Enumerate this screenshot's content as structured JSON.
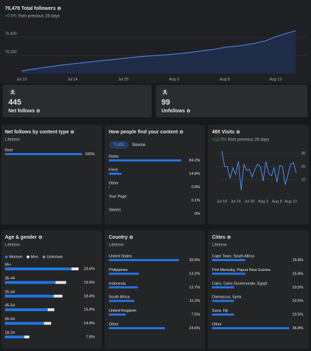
{
  "summary": [
    {
      "value": 445,
      "label": "Net follows"
    },
    {
      "value": 99,
      "label": "Unfollows"
    }
  ],
  "chart_data": [
    {
      "type": "area",
      "title": "70,478 Total followers",
      "change": "+0.6%",
      "subtitle": "from previous 28 days",
      "categories": [
        "Jul 19",
        null,
        null,
        null,
        null,
        "Jul 24",
        null,
        null,
        null,
        null,
        "Jul 29",
        null,
        null,
        null,
        null,
        "Aug 3",
        null,
        null,
        null,
        null,
        "Aug 8",
        null,
        null,
        null,
        null,
        "Aug 13",
        null,
        null
      ],
      "values": [
        70030,
        70048,
        70065,
        70080,
        70095,
        70108,
        70120,
        70132,
        70145,
        70155,
        70168,
        70180,
        70190,
        70198,
        70205,
        70215,
        70225,
        70240,
        70255,
        70268,
        70290,
        70300,
        70315,
        70335,
        70360,
        70405,
        70440,
        70472
      ],
      "ylim": [
        70000,
        70600
      ],
      "yticks": [
        {
          "value": 70200,
          "label": "70,200"
        },
        {
          "value": 70400,
          "label": "70,400"
        }
      ],
      "color": "#4a7fd4",
      "grid": true
    },
    {
      "type": "hbar",
      "title": "Net follows by content type",
      "subtitle": "Lifetime",
      "categories": [
        "Reel"
      ],
      "values": [
        100
      ],
      "value_labels": [
        "100%"
      ],
      "color": "#2374e1"
    },
    {
      "type": "hbar",
      "title": "How people find your content",
      "tabs": [
        "Traffic",
        "Source"
      ],
      "active_tab": 0,
      "categories": [
        "Reels",
        "Feed",
        "Other",
        "Your Page",
        "Stories"
      ],
      "values": [
        84.2,
        14.8,
        0.9,
        0.1,
        0
      ],
      "value_labels": [
        "84.2%",
        "14.8%",
        "0.9%",
        "0.1%",
        "0%"
      ],
      "color": "#2374e1"
    },
    {
      "type": "line",
      "title": "465 Visits",
      "change": "+12.3%",
      "subtitle": "from previous 28 days",
      "categories": [
        "Jul 19",
        null,
        null,
        null,
        null,
        "Jul 24",
        null,
        null,
        null,
        null,
        "Jul 29",
        null,
        null,
        null,
        null,
        "Aug 3",
        null,
        null,
        null,
        null,
        "Aug 8",
        null,
        null,
        null,
        null,
        "Aug 13",
        null,
        null
      ],
      "values": [
        32,
        20,
        20,
        11,
        19,
        14,
        24,
        2,
        22,
        17,
        18,
        12,
        18,
        22,
        20,
        9,
        24,
        15,
        13,
        19,
        8,
        21,
        20,
        6,
        14,
        22,
        23,
        15
      ],
      "ylim": [
        0,
        35
      ],
      "yticks": [
        10,
        20,
        30
      ],
      "color": "#4a8ef0",
      "grid": true
    },
    {
      "type": "stacked_hbar",
      "title": "Age & gender",
      "subtitle": "Lifetime",
      "categories": [
        "65+",
        "35-44",
        "25-34",
        "45-54",
        "55-64",
        "18-24"
      ],
      "series": [
        {
          "name": "Women",
          "color": "#2374e1",
          "values": [
            21.3,
            16.2,
            15.6,
            13.7,
            12.5,
            6.2
          ]
        },
        {
          "name": "Men",
          "color": "#e4e6eb",
          "values": [
            2.3,
            3.4,
            2.8,
            2.1,
            2.3,
            1.6
          ]
        },
        {
          "name": "Unknown",
          "color": "#8a8d91",
          "values": [
            0,
            0,
            0,
            0,
            0,
            0
          ]
        }
      ],
      "totals": [
        23.6,
        19.6,
        18.4,
        15.8,
        14.8,
        7.8
      ],
      "total_labels": [
        "23.6%",
        "19.6%",
        "18.4%",
        "15.8%",
        "14.8%",
        "7.8%"
      ]
    },
    {
      "type": "hbar",
      "title": "Country",
      "subtitle": "Lifetime",
      "categories": [
        "United States",
        "Philippines",
        "Indonesia",
        "South Africa",
        "United Kingdom",
        "Other"
      ],
      "values": [
        30.8,
        13.2,
        12.7,
        11.2,
        7.5,
        24.6
      ],
      "value_labels": [
        "30.8%",
        "13.2%",
        "12.7%",
        "11.2%",
        "7.5%",
        "24.6%"
      ],
      "color": "#2374e1"
    },
    {
      "type": "hbar",
      "title": "Cities",
      "subtitle": "Lifetime",
      "categories": [
        "Cape Town, South Africa",
        "Port Moresby, Papua New Guinea",
        "Cairo, Cairo Governorate, Egypt",
        "Damascus, Syria",
        "Suva, Fiji",
        "Other"
      ],
      "values": [
        15.8,
        15.8,
        10.5,
        10.5,
        10.5,
        36.8
      ],
      "value_labels": [
        "15.8%",
        "15.8%",
        "10.5%",
        "10.5%",
        "10.5%",
        "36.8%"
      ],
      "color": "#2374e1"
    }
  ]
}
